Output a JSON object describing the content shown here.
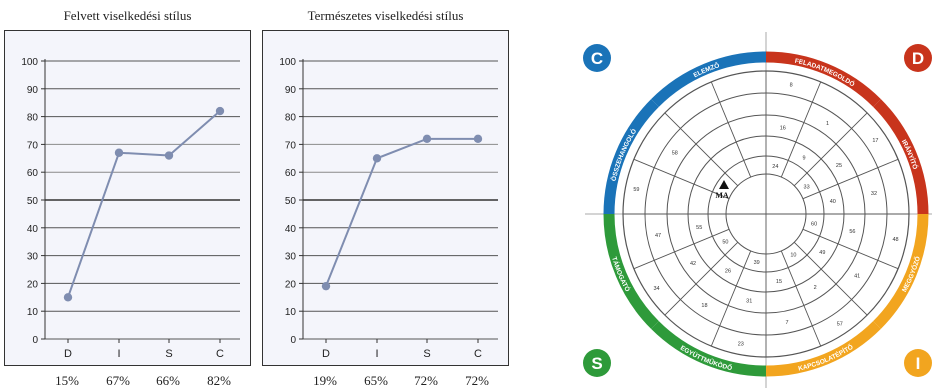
{
  "chart_data": [
    {
      "type": "line",
      "title": "Felvett viselkedési stílus",
      "categories": [
        "D",
        "I",
        "S",
        "C"
      ],
      "values": [
        15,
        67,
        66,
        82
      ],
      "percent_labels": [
        "15%",
        "67%",
        "66%",
        "82%"
      ],
      "ylim": [
        0,
        100
      ],
      "yticks": [
        0,
        10,
        20,
        30,
        40,
        50,
        60,
        70,
        80,
        90,
        100
      ],
      "grid": true,
      "color": "#7f8db0"
    },
    {
      "type": "line",
      "title": "Természetes viselkedési stílus",
      "categories": [
        "D",
        "I",
        "S",
        "C"
      ],
      "values": [
        19,
        65,
        72,
        72
      ],
      "percent_labels": [
        "19%",
        "65%",
        "72%",
        "72%"
      ],
      "ylim": [
        0,
        100
      ],
      "yticks": [
        0,
        10,
        20,
        30,
        40,
        50,
        60,
        70,
        80,
        90,
        100
      ],
      "grid": true,
      "color": "#7f8db0"
    }
  ],
  "wheel": {
    "corners": [
      {
        "letter": "C",
        "color": "#1a73b8"
      },
      {
        "letter": "D",
        "color": "#c8341c"
      },
      {
        "letter": "S",
        "color": "#2e9a3a"
      },
      {
        "letter": "I",
        "color": "#f2a51f"
      }
    ],
    "segments": [
      {
        "label": "FELADATMEGOLDÓ",
        "color": "#c8341c"
      },
      {
        "label": "IRÁNYÍTÓ",
        "color": "#c8341c"
      },
      {
        "label": "MEGGYŐZŐ",
        "color": "#f2a51f"
      },
      {
        "label": "KAPCSOLATÉPÍTŐ",
        "color": "#f2a51f"
      },
      {
        "label": "EGYÜTTMŰKÖDŐ",
        "color": "#2e9a3a"
      },
      {
        "label": "TÁMOGATÓ",
        "color": "#2e9a3a"
      },
      {
        "label": "ÖSSZEHANGOLÓ",
        "color": "#1a73b8"
      },
      {
        "label": "ELEMZŐ",
        "color": "#1a73b8"
      }
    ],
    "marker_label": "MA",
    "numbers": [
      "8",
      "1",
      "16",
      "9",
      "24",
      "17",
      "32",
      "25",
      "40",
      "33",
      "48",
      "41",
      "56",
      "49",
      "60",
      "57",
      "7",
      "2",
      "15",
      "10",
      "23",
      "18",
      "31",
      "26",
      "39",
      "34",
      "47",
      "42",
      "55",
      "50",
      "59",
      "58"
    ]
  }
}
